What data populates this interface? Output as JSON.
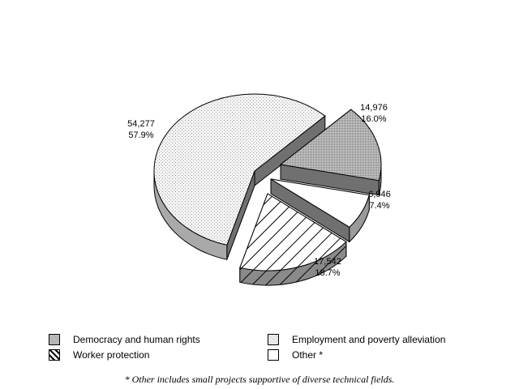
{
  "chart_data": {
    "type": "pie",
    "style": "3d-exploded",
    "title": "",
    "slices": [
      {
        "key": "employment",
        "value_label": "54,277",
        "pct_label": "57.9%",
        "value": 54277,
        "percent": 57.9,
        "pattern": "fine-dots"
      },
      {
        "key": "democracy",
        "value_label": "14,976",
        "pct_label": "16.0%",
        "value": 14976,
        "percent": 16.0,
        "pattern": "dense-dots"
      },
      {
        "key": "other",
        "value_label": "6,946",
        "pct_label": "7.4%",
        "value": 6946,
        "percent": 7.4,
        "pattern": "white"
      },
      {
        "key": "worker",
        "value_label": "17,542",
        "pct_label": "18.7%",
        "value": 17542,
        "percent": 18.7,
        "pattern": "diagonal-hatch"
      }
    ],
    "legend": [
      {
        "key": "democracy",
        "label": "Democracy and human rights",
        "pattern": "dense-dots"
      },
      {
        "key": "employment",
        "label": "Employment and poverty alleviation",
        "pattern": "fine-dots"
      },
      {
        "key": "worker",
        "label": "Worker protection",
        "pattern": "diagonal-hatch"
      },
      {
        "key": "other",
        "label": "Other *",
        "pattern": "white"
      }
    ],
    "legend_position": "bottom",
    "footnote": "* Other includes small projects supportive of diverse technical fields."
  }
}
